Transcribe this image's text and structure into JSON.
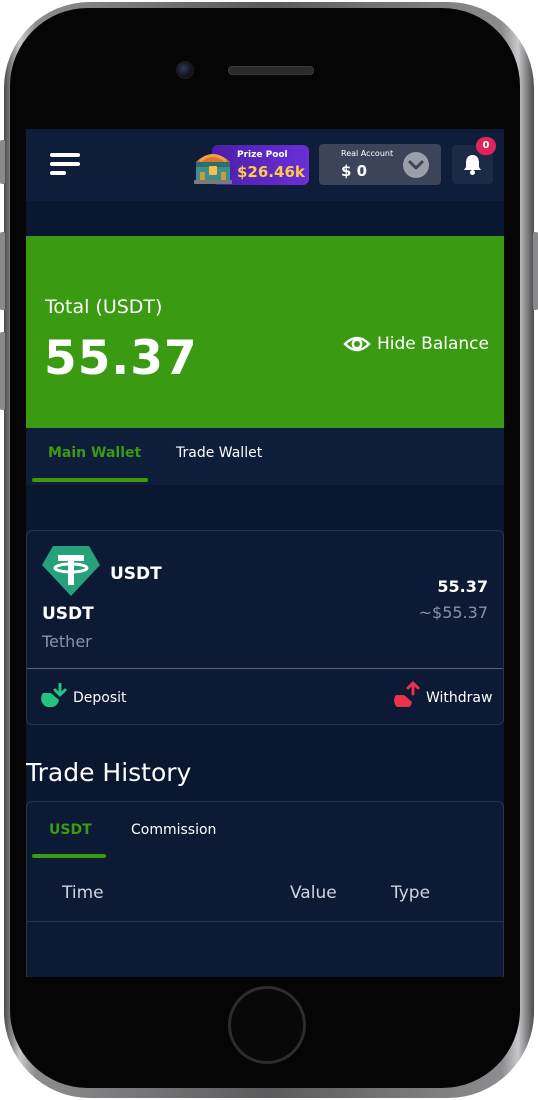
{
  "header": {
    "prize_pool_label": "Prize Pool",
    "prize_pool_value": "$26.46k",
    "account_label": "Real Account",
    "account_value": "$ 0",
    "notification_count": "0"
  },
  "balance": {
    "label": "Total (USDT)",
    "value": "55.37",
    "hide_label": "Hide Balance"
  },
  "wallet_tabs": [
    {
      "label": "Main Wallet",
      "active": true
    },
    {
      "label": "Trade Wallet",
      "active": false
    }
  ],
  "asset": {
    "symbol_top": "USDT",
    "symbol": "USDT",
    "name": "Tether",
    "amount": "55.37",
    "usd_value": "~$55.37",
    "deposit_label": "Deposit",
    "withdraw_label": "Withdraw"
  },
  "history": {
    "title": "Trade History",
    "tabs": [
      {
        "label": "USDT",
        "active": true
      },
      {
        "label": "Commission",
        "active": false
      }
    ],
    "columns": [
      "Time",
      "Value",
      "Type"
    ]
  },
  "colors": {
    "accent_green": "#3a9b13",
    "background": "#0a1730",
    "tether_teal": "#26a17b",
    "withdraw_red": "#e8334a",
    "badge_pink": "#e0245e"
  },
  "icons": {
    "menu": "hamburger-menu-icon",
    "chest": "treasure-chest-icon",
    "chevron": "chevron-down-icon",
    "bell": "bell-icon",
    "eye": "eye-icon",
    "tether": "tether-logo-icon",
    "deposit": "deposit-arrow-icon",
    "withdraw": "withdraw-arrow-icon"
  }
}
